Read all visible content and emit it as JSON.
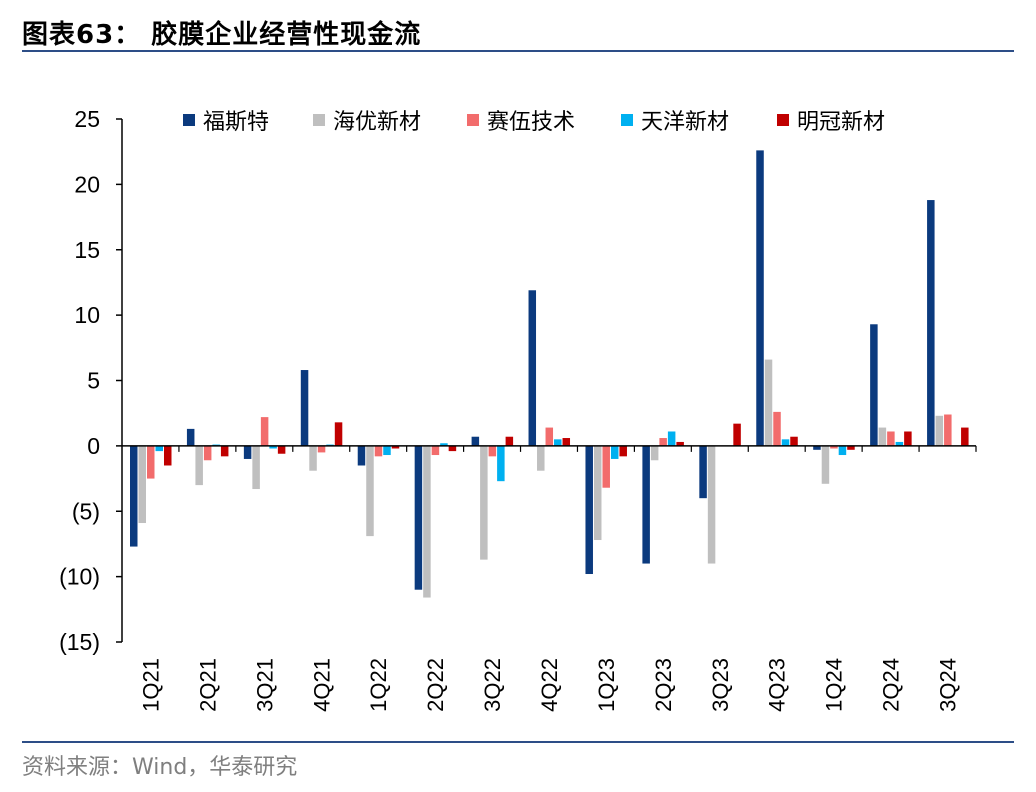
{
  "figure": {
    "title": "图表63：  胶膜企业经营性现金流",
    "source": "资料来源：Wind，华泰研究"
  },
  "chart_data": {
    "type": "bar",
    "title": "胶膜企业经营性现金流",
    "xlabel": "",
    "ylabel": "",
    "ylim": [
      -15,
      25
    ],
    "yticks": [
      25,
      20,
      15,
      10,
      5,
      0,
      -5,
      -10,
      -15
    ],
    "ytick_labels": [
      "25",
      "20",
      "15",
      "10",
      "5",
      "0",
      "(5)",
      "(10)",
      "(15)"
    ],
    "legend_position": "top",
    "categories": [
      "1Q21",
      "2Q21",
      "3Q21",
      "4Q21",
      "1Q22",
      "2Q22",
      "3Q22",
      "4Q22",
      "1Q23",
      "2Q23",
      "3Q23",
      "4Q23",
      "1Q24",
      "2Q24",
      "3Q24"
    ],
    "series": [
      {
        "name": "福斯特",
        "color": "#0b3a7e",
        "values": [
          -7.7,
          1.3,
          -1.0,
          5.8,
          -1.5,
          -11.0,
          0.7,
          11.9,
          -9.8,
          -9.0,
          -4.0,
          22.6,
          -0.3,
          9.3,
          18.8
        ]
      },
      {
        "name": "海优新材",
        "color": "#bfbfbf",
        "values": [
          -5.9,
          -3.0,
          -3.3,
          -1.9,
          -6.9,
          -11.6,
          -8.7,
          -1.9,
          -7.2,
          -1.1,
          -9.0,
          6.6,
          -2.9,
          1.4,
          2.3
        ]
      },
      {
        "name": "赛伍技术",
        "color": "#f26c6c",
        "values": [
          -2.5,
          -1.1,
          2.2,
          -0.5,
          -0.8,
          -0.7,
          -0.8,
          1.4,
          -3.2,
          0.6,
          0.0,
          2.6,
          -0.2,
          1.1,
          2.4
        ]
      },
      {
        "name": "天洋新材",
        "color": "#00b0f0",
        "values": [
          -0.4,
          0.1,
          -0.2,
          0.1,
          -0.7,
          0.2,
          -2.7,
          0.5,
          -1.0,
          1.1,
          0.0,
          0.5,
          -0.7,
          0.3,
          0.0
        ]
      },
      {
        "name": "明冠新材",
        "color": "#c00000",
        "values": [
          -1.5,
          -0.8,
          -0.6,
          1.8,
          -0.2,
          -0.4,
          0.7,
          0.6,
          -0.8,
          0.3,
          1.7,
          0.7,
          -0.3,
          1.1,
          1.4
        ]
      }
    ]
  }
}
